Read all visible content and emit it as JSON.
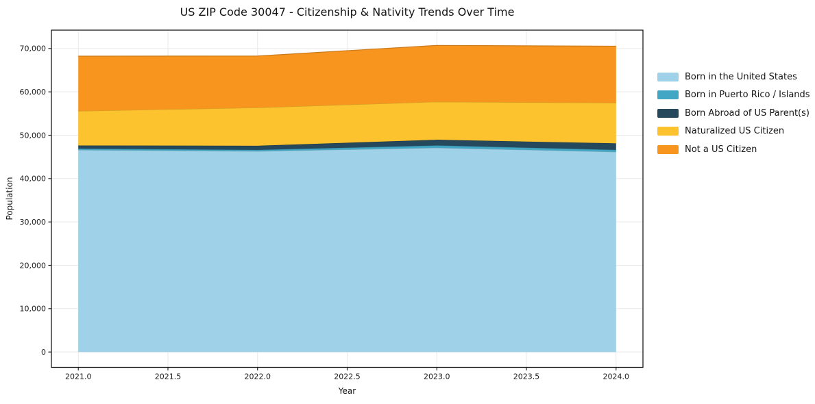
{
  "chart_data": {
    "type": "area",
    "stacked": true,
    "title": "US ZIP Code 30047 - Citizenship & Nativity Trends Over Time",
    "xlabel": "Year",
    "ylabel": "Population",
    "x": [
      2021,
      2022,
      2023,
      2024
    ],
    "series": [
      {
        "name": "Born in the United States",
        "color": "#9fd2e8",
        "values": [
          46600,
          46300,
          47100,
          46150
        ]
      },
      {
        "name": "Born in Puerto Rico / Islands",
        "color": "#41a7c4",
        "values": [
          310,
          320,
          540,
          480
        ]
      },
      {
        "name": "Born Abroad of US Parent(s)",
        "color": "#26485c",
        "values": [
          720,
          950,
          1320,
          1500
        ]
      },
      {
        "name": "Naturalized US Citizen",
        "color": "#fdc32f",
        "values": [
          7950,
          8800,
          8750,
          9350
        ]
      },
      {
        "name": "Not a US Citizen",
        "color": "#f7951f",
        "values": [
          12650,
          11900,
          13000,
          13050
        ]
      }
    ],
    "totals": [
      68230,
      68270,
      70710,
      70530
    ],
    "x_ticks": {
      "values": [
        2021.0,
        2021.5,
        2022.0,
        2022.5,
        2023.0,
        2023.5,
        2024.0
      ],
      "labels": [
        "2021.0",
        "2021.5",
        "2022.0",
        "2022.5",
        "2023.0",
        "2023.5",
        "2024.0"
      ]
    },
    "y_ticks": {
      "values": [
        0,
        10000,
        20000,
        30000,
        40000,
        50000,
        60000,
        70000
      ],
      "labels": [
        "0",
        "10,000",
        "20,000",
        "30,000",
        "40,000",
        "50,000",
        "60,000",
        "70,000"
      ]
    },
    "xlim": [
      2020.85,
      2024.15
    ],
    "ylim": [
      -3536,
      74235
    ],
    "grid": true,
    "legend_position": "right",
    "colors": {
      "background": "#ffffff",
      "gridline": "#e9e9e9",
      "spine": "#1a1a1a",
      "text": "#151515"
    }
  }
}
